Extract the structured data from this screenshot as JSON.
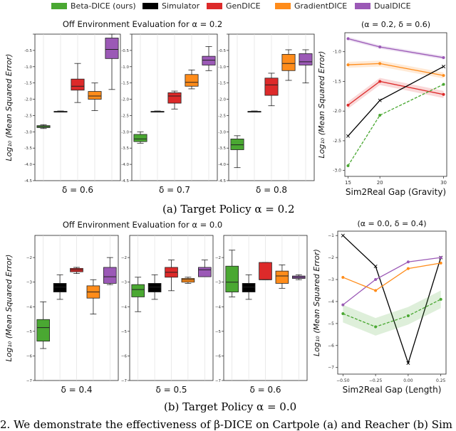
{
  "legend": [
    {
      "label": "Beta-DICE (ours)",
      "color": "#4aa832"
    },
    {
      "label": "Simulator",
      "color": "#000000"
    },
    {
      "label": "GenDICE",
      "color": "#dd2a2a"
    },
    {
      "label": "GradientDICE",
      "color": "#ff8c1a"
    },
    {
      "label": "DualDICE",
      "color": "#9b59b6"
    }
  ],
  "captions": {
    "a": "(a) Target Policy α = 0.2",
    "b": "(b) Target Policy α = 0.0",
    "footer": "2. We demonstrate the effectiveness of β-DICE on Cartpole (a) and Reacher (b) Sim"
  },
  "chart_data": [
    {
      "type": "box",
      "title": "Off Environment Evaluation for α = 0.2",
      "ylabel": "Log₁₀ (Mean Squared Error)",
      "ylim": [
        -4.5,
        0
      ],
      "yticks": [
        0,
        -0.5,
        -1.0,
        -1.5,
        -2.0,
        -2.5,
        -3.0,
        -3.5,
        -4.0,
        -4.5
      ],
      "ytick_labels": [
        "",
        "-0.5",
        "-1.0",
        "-1.5",
        "-2.0",
        "-2.5",
        "-3.0",
        "-3.5",
        "-4.0",
        "-4.5"
      ],
      "series_order": [
        "Beta-DICE (ours)",
        "Simulator",
        "GenDICE",
        "GradientDICE",
        "DualDICE"
      ],
      "groups": [
        {
          "label": "δ = 0.6",
          "boxes": [
            {
              "min": -2.9,
              "q1": -2.87,
              "median": -2.84,
              "q3": -2.81,
              "max": -2.78
            },
            {
              "min": -2.39,
              "q1": -2.38,
              "median": -2.38,
              "q3": -2.37,
              "max": -2.36
            },
            {
              "min": -2.1,
              "q1": -1.72,
              "median": -1.6,
              "q3": -1.38,
              "max": -0.9
            },
            {
              "min": -2.35,
              "q1": -2.0,
              "median": -1.9,
              "q3": -1.76,
              "max": -1.5
            },
            {
              "min": -1.7,
              "q1": -0.75,
              "median": -0.47,
              "q3": -0.12,
              "max": 0.0
            }
          ]
        },
        {
          "label": "δ = 0.7",
          "boxes": [
            {
              "min": -3.35,
              "q1": -3.3,
              "median": -3.22,
              "q3": -3.08,
              "max": -3.0
            },
            {
              "min": -2.39,
              "q1": -2.38,
              "median": -2.38,
              "q3": -2.37,
              "max": -2.36
            },
            {
              "min": -2.3,
              "q1": -2.12,
              "median": -1.9,
              "q3": -1.8,
              "max": -1.75
            },
            {
              "min": -1.68,
              "q1": -1.6,
              "median": -1.48,
              "q3": -1.24,
              "max": -1.1
            },
            {
              "min": -1.12,
              "q1": -0.95,
              "median": -0.8,
              "q3": -0.68,
              "max": -0.38
            }
          ]
        },
        {
          "label": "δ = 0.8",
          "boxes": [
            {
              "min": -4.1,
              "q1": -3.55,
              "median": -3.4,
              "q3": -3.22,
              "max": -3.12
            },
            {
              "min": -2.39,
              "q1": -2.38,
              "median": -2.38,
              "q3": -2.37,
              "max": -2.36
            },
            {
              "min": -2.2,
              "q1": -1.88,
              "median": -1.56,
              "q3": -1.35,
              "max": -1.2
            },
            {
              "min": -1.42,
              "q1": -1.12,
              "median": -0.9,
              "q3": -0.62,
              "max": -0.48
            },
            {
              "min": -1.5,
              "q1": -0.95,
              "median": -0.85,
              "q3": -0.6,
              "max": -0.48
            }
          ]
        }
      ]
    },
    {
      "type": "line",
      "title": "(α = 0.2, δ = 0.6)",
      "xlabel": "Sim2Real Gap (Gravity)",
      "ylabel": "Log₁₀ (Mean Squared Error)",
      "x": [
        15,
        20,
        30
      ],
      "xticks": [
        15,
        20,
        30
      ],
      "xlim": [
        14.5,
        30.5
      ],
      "ylim": [
        -3.1,
        -0.68
      ],
      "yticks": [
        -1.0,
        -1.5,
        -2.0,
        -2.5,
        -3.0
      ],
      "ytick_labels": [
        "-1.0",
        "-1.5",
        "-2.0",
        "-2.5",
        "-3.0"
      ],
      "series": [
        {
          "name": "DualDICE",
          "color": "#9b59b6",
          "values": [
            -0.78,
            -0.92,
            -1.1
          ],
          "band": 0.03
        },
        {
          "name": "GradientDICE",
          "color": "#ff8c1a",
          "values": [
            -1.22,
            -1.2,
            -1.4
          ],
          "band": 0.05
        },
        {
          "name": "GenDICE",
          "color": "#dd2a2a",
          "values": [
            -1.9,
            -1.5,
            -1.72
          ],
          "band": 0.06
        },
        {
          "name": "Simulator",
          "color": "#000000",
          "values": [
            -2.42,
            -1.82,
            -1.25
          ],
          "band": 0
        },
        {
          "name": "Beta-DICE (ours)",
          "color": "#4aa832",
          "values": [
            -2.92,
            -2.07,
            -1.55
          ],
          "band": 0,
          "dashed": true
        }
      ]
    },
    {
      "type": "box",
      "title": "Off Environment Evaluation for α = 0.0",
      "ylabel": "Log₁₀ (Mean Squared Error)",
      "ylim": [
        -7,
        -1.1
      ],
      "yticks": [
        -2,
        -3,
        -4,
        -5,
        -6,
        -7
      ],
      "ytick_labels": [
        "−2",
        "−3",
        "−4",
        "−5",
        "−6",
        "−7"
      ],
      "series_order": [
        "Beta-DICE (ours)",
        "Simulator",
        "GenDICE",
        "GradientDICE",
        "DualDICE"
      ],
      "groups": [
        {
          "label": "δ = 0.4",
          "boxes": [
            {
              "min": -5.7,
              "q1": -5.4,
              "median": -4.85,
              "q3": -4.52,
              "max": -3.8
            },
            {
              "min": -3.7,
              "q1": -3.4,
              "median": -3.2,
              "q3": -3.05,
              "max": -2.7
            },
            {
              "min": -2.65,
              "q1": -2.58,
              "median": -2.5,
              "q3": -2.44,
              "max": -2.4
            },
            {
              "min": -4.3,
              "q1": -3.65,
              "median": -3.4,
              "q3": -3.15,
              "max": -2.9
            },
            {
              "min": -3.1,
              "q1": -3.05,
              "median": -2.78,
              "q3": -2.4,
              "max": -2.0
            }
          ]
        },
        {
          "label": "δ = 0.5",
          "boxes": [
            {
              "min": -4.2,
              "q1": -3.6,
              "median": -3.3,
              "q3": -3.1,
              "max": -2.8
            },
            {
              "min": -3.7,
              "q1": -3.4,
              "median": -3.2,
              "q3": -3.05,
              "max": -2.7
            },
            {
              "min": -3.35,
              "q1": -2.8,
              "median": -2.6,
              "q3": -2.4,
              "max": -2.1
            },
            {
              "min": -3.05,
              "q1": -3.0,
              "median": -2.9,
              "q3": -2.85,
              "max": -2.8
            },
            {
              "min": -2.78,
              "q1": -2.78,
              "median": -2.5,
              "q3": -2.4,
              "max": -2.1
            }
          ]
        },
        {
          "label": "δ = 0.6",
          "boxes": [
            {
              "min": -3.6,
              "q1": -3.4,
              "median": -3.0,
              "q3": -2.35,
              "max": -1.7
            },
            {
              "min": -3.7,
              "q1": -3.4,
              "median": -3.2,
              "q3": -3.05,
              "max": -2.7
            },
            {
              "min": -2.9,
              "q1": -2.9,
              "median": -2.9,
              "q3": -2.2,
              "max": -2.2
            },
            {
              "min": -3.25,
              "q1": -3.05,
              "median": -2.75,
              "q3": -2.55,
              "max": -2.3
            },
            {
              "min": -2.9,
              "q1": -2.85,
              "median": -2.8,
              "q3": -2.75,
              "max": -2.7
            }
          ]
        }
      ]
    },
    {
      "type": "line",
      "title": "(α = 0.0, δ = 0.4)",
      "xlabel": "Sim2Real Gap (Length)",
      "ylabel": "Log₁₀ (Mean Squared Error)",
      "x": [
        -0.5,
        -0.25,
        0.0,
        0.25
      ],
      "xticks": [
        -0.5,
        -0.25,
        0.0,
        0.25
      ],
      "xtick_labels": [
        "−0.50",
        "−0.25",
        "0.00",
        "0.25"
      ],
      "xlim": [
        -0.54,
        0.29
      ],
      "ylim": [
        -7.3,
        -0.8
      ],
      "yticks": [
        -1,
        -2,
        -3,
        -4,
        -5,
        -6,
        -7
      ],
      "ytick_labels": [
        "−1",
        "−2",
        "−3",
        "−4",
        "−5",
        "−6",
        "−7"
      ],
      "series": [
        {
          "name": "Simulator",
          "color": "#000000",
          "values": [
            -1.0,
            -2.4,
            -6.8,
            -2.0
          ],
          "band": 0
        },
        {
          "name": "DualDICE",
          "color": "#9b59b6",
          "values": [
            -4.15,
            -3.0,
            -2.2,
            -2.0
          ],
          "band": 0
        },
        {
          "name": "GradientDICE",
          "color": "#ff8c1a",
          "values": [
            -2.9,
            -3.5,
            -2.5,
            -2.25
          ],
          "band": 0
        },
        {
          "name": "Beta-DICE (ours)",
          "color": "#4aa832",
          "values": [
            -4.55,
            -5.15,
            -4.65,
            -3.9
          ],
          "band": 0.4,
          "dashed": true
        }
      ]
    }
  ]
}
